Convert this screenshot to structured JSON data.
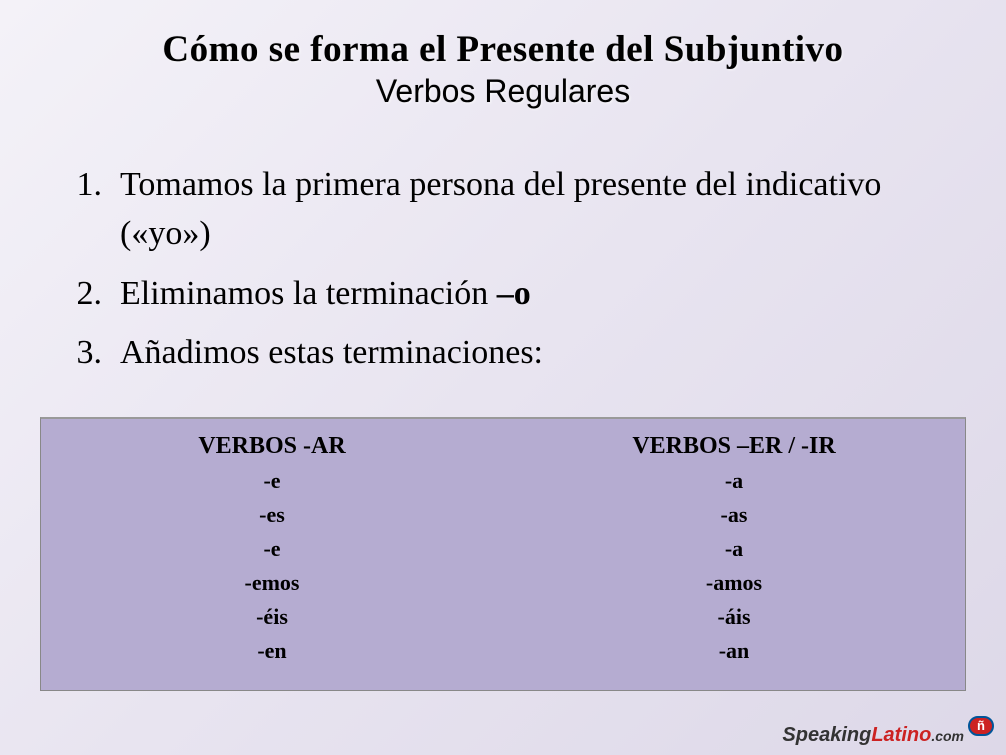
{
  "title": {
    "main": "Cómo se forma el Presente del Subjuntivo",
    "subtitle": "Verbos Regulares",
    "main_fontsize": 37,
    "subtitle_fontsize": 32
  },
  "steps": [
    {
      "number": "1.",
      "text_pre": "Tomamos la primera persona del presente del indicativo («yo»)",
      "bold": ""
    },
    {
      "number": "2.",
      "text_pre": "Eliminamos la terminación ",
      "bold": "–o"
    },
    {
      "number": "3.",
      "text_pre": "Añadimos estas terminaciones:",
      "bold": ""
    }
  ],
  "table": {
    "type": "table",
    "background_color": "#b5acd1",
    "border_color": "#888888",
    "columns": [
      {
        "header": "VERBOS  -AR",
        "endings": [
          "-e",
          "-es",
          "-e",
          "-emos",
          "-éis",
          "-en"
        ]
      },
      {
        "header": "VERBOS –ER / -IR",
        "endings": [
          "-a",
          "-as",
          "-a",
          "-amos",
          "-áis",
          "-an"
        ]
      }
    ],
    "header_fontsize": 24,
    "ending_fontsize": 22
  },
  "logo": {
    "part1": "Speaking",
    "part2": "Latino",
    "part3": ".com",
    "bubble": "ñ",
    "color_speaking": "#333333",
    "color_latino": "#cc2222",
    "color_bubble_bg": "#cc2222",
    "color_bubble_border": "#005599"
  },
  "background": {
    "gradient_start": "#f4f2f8",
    "gradient_mid": "#e8e4f0",
    "gradient_end": "#ddd8e8"
  }
}
